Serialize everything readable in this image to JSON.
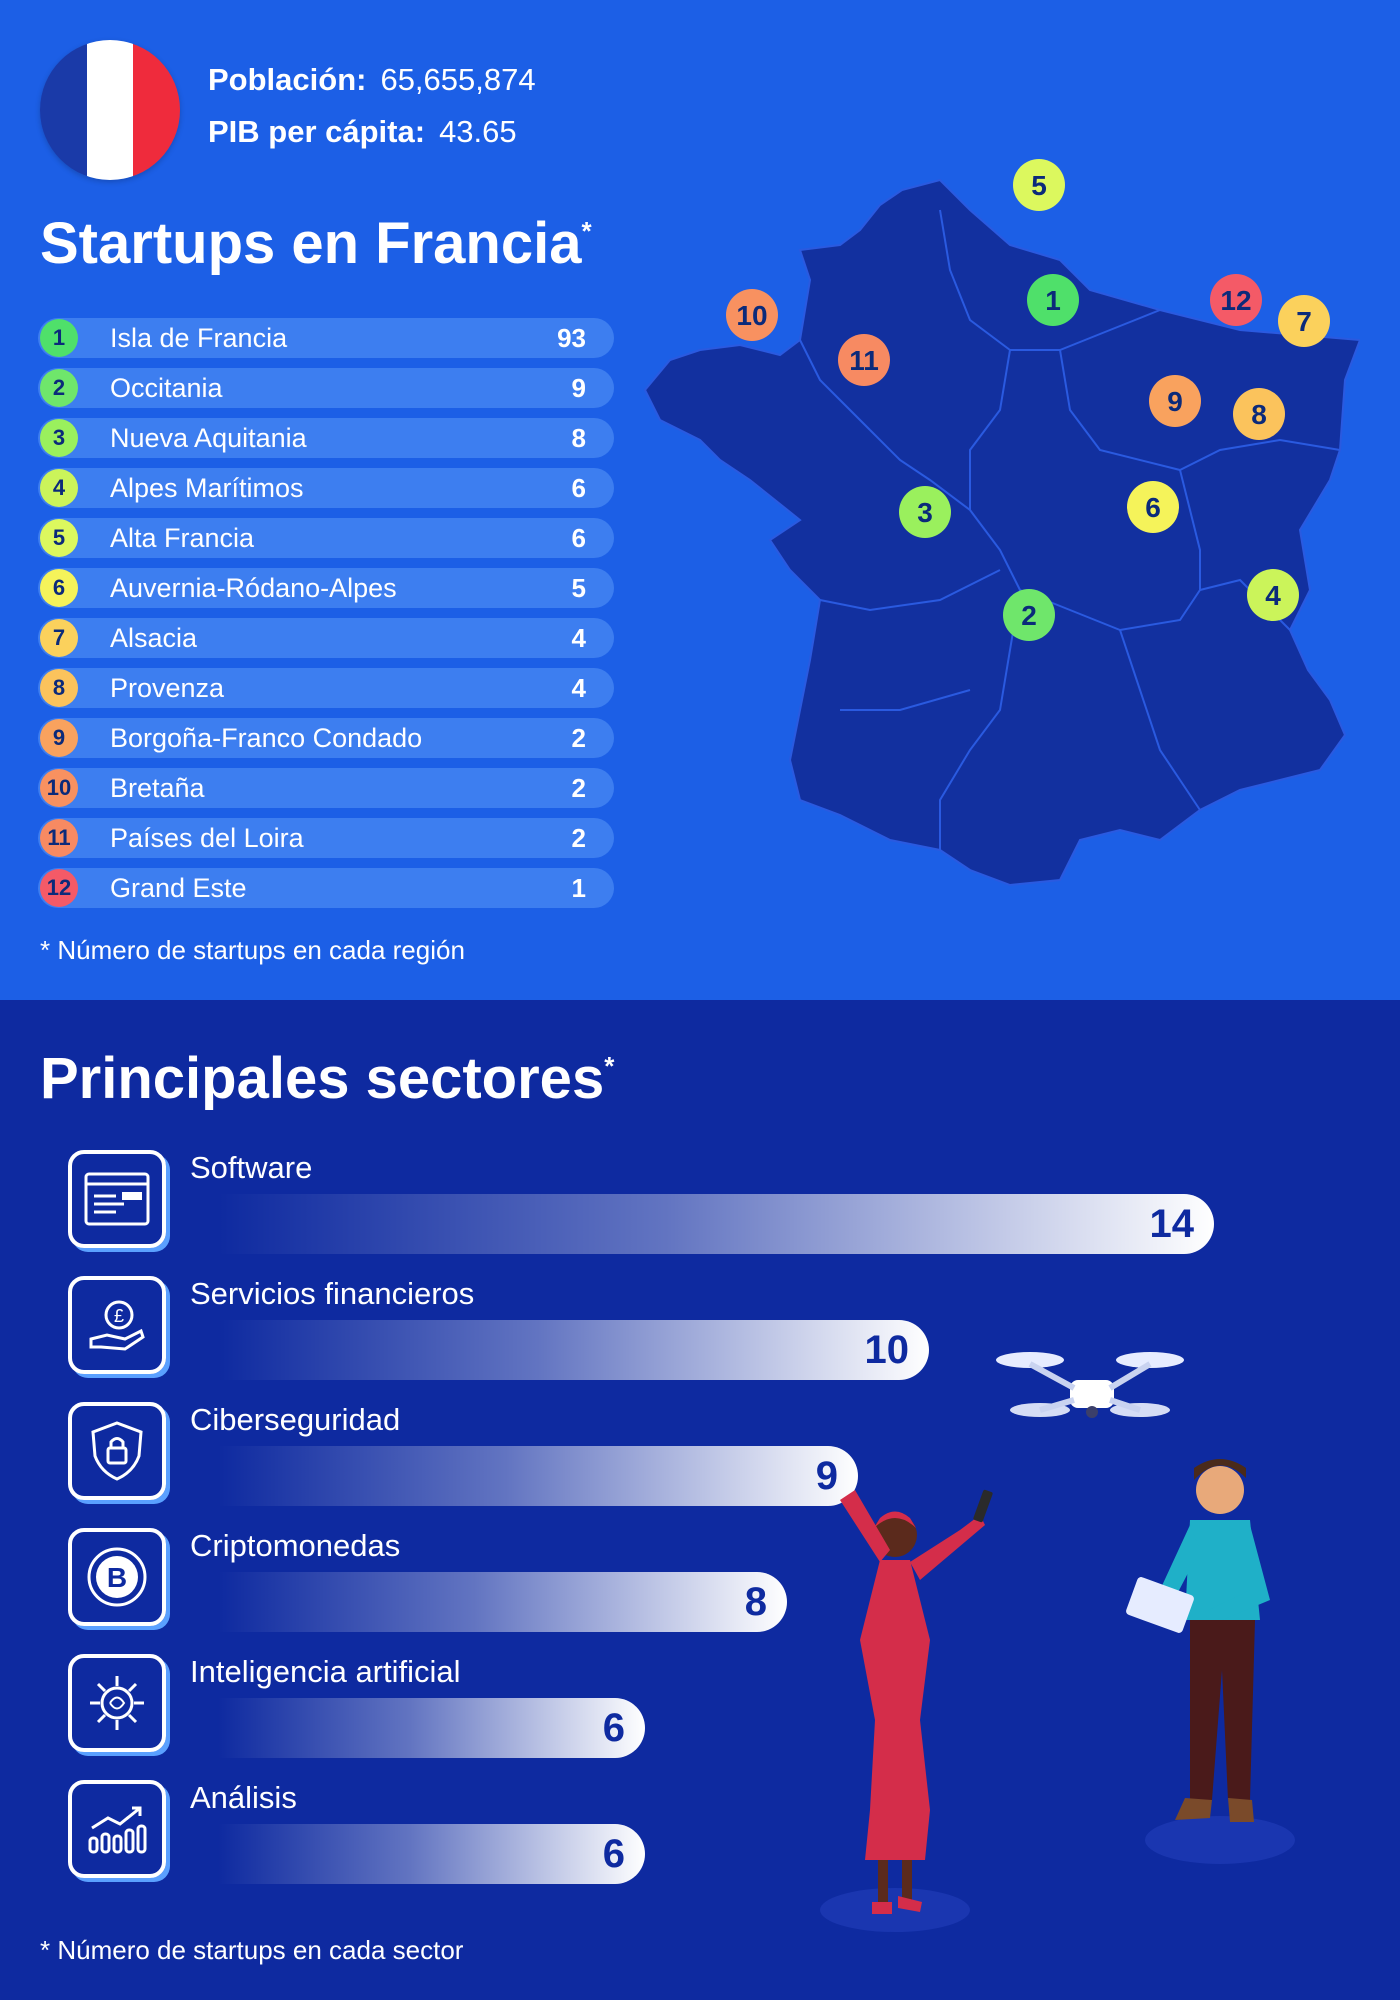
{
  "header": {
    "population_label": "Población:",
    "population_value": "65,655,874",
    "gdp_label": "PIB per cápita:",
    "gdp_value": "43.65"
  },
  "colors": {
    "top_background": "#1c5fe6",
    "bottom_background": "#0e2aa0",
    "flag_blue": "#1a3aa8",
    "flag_white": "#ffffff",
    "flag_red": "#ef2b3c"
  },
  "startups": {
    "title": "Startups en Francia",
    "title_mark": "*",
    "note": "* Número de startups en cada región"
  },
  "sectors": {
    "title": "Principales sectores",
    "title_mark": "*",
    "note": "* Número de startups en cada sector",
    "icons": [
      "browser-window-icon",
      "hand-coin-icon",
      "shield-lock-icon",
      "bitcoin-icon",
      "ai-chip-icon",
      "growth-chart-icon"
    ]
  },
  "chart_data": [
    {
      "type": "table",
      "title": "Startups en Francia",
      "columns": [
        "rank",
        "region",
        "startups"
      ],
      "rows": [
        {
          "rank": "1",
          "region": "Isla de Francia",
          "value": "93",
          "color": "#4fe06a"
        },
        {
          "rank": "2",
          "region": "Occitania",
          "value": "9",
          "color": "#6fe66b"
        },
        {
          "rank": "3",
          "region": "Nueva Aquitania",
          "value": "8",
          "color": "#9af05d"
        },
        {
          "rank": "4",
          "region": "Alpes Marítimos",
          "value": "6",
          "color": "#cbf45a"
        },
        {
          "rank": "5",
          "region": "Alta Francia",
          "value": "6",
          "color": "#dcf85e"
        },
        {
          "rank": "6",
          "region": "Auvernia-Ródano-Alpes",
          "value": "5",
          "color": "#f5f35a"
        },
        {
          "rank": "7",
          "region": "Alsacia",
          "value": "4",
          "color": "#fbd15c"
        },
        {
          "rank": "8",
          "region": "Provenza",
          "value": "4",
          "color": "#fbc35c"
        },
        {
          "rank": "9",
          "region": "Borgoña-Franco Condado",
          "value": "2",
          "color": "#f9a25e"
        },
        {
          "rank": "10",
          "region": "Bretaña",
          "value": "2",
          "color": "#f89160"
        },
        {
          "rank": "11",
          "region": "Países del Loira",
          "value": "2",
          "color": "#f78a62"
        },
        {
          "rank": "12",
          "region": "Grand Este",
          "value": "1",
          "color": "#f45a67"
        }
      ]
    },
    {
      "type": "bar",
      "title": "Principales sectores",
      "categories": [
        "Software",
        "Servicios financieros",
        "Ciberseguridad",
        "Criptomonedas",
        "Inteligencia artificial",
        "Análisis"
      ],
      "values": [
        14,
        10,
        9,
        8,
        6,
        6
      ],
      "orientation": "horizontal"
    }
  ]
}
